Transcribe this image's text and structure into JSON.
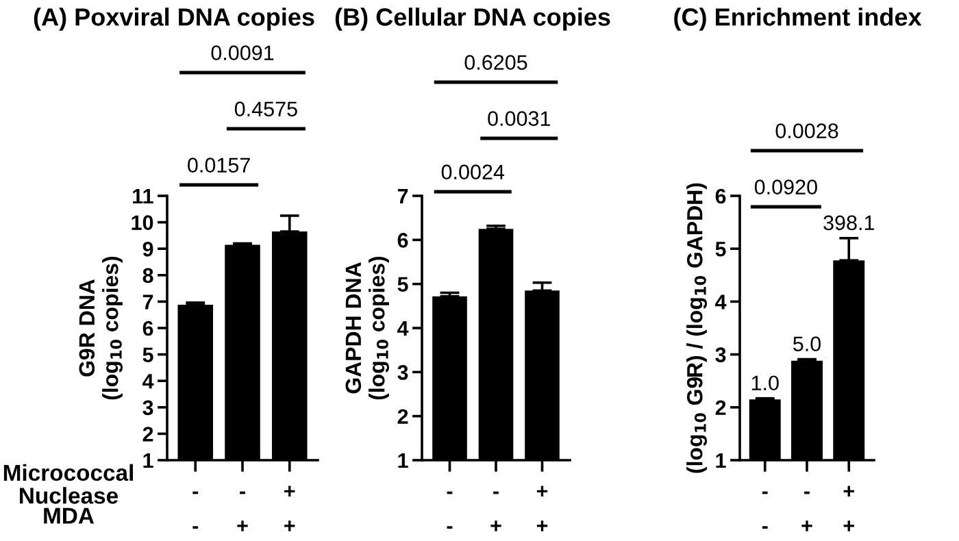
{
  "chart_data": [
    {
      "type": "bar",
      "title": "(A) Poxviral DNA copies",
      "ylabel": "G9R DNA\n(log$_{10}$ copies)",
      "categories": [
        "-\n-",
        "-\n+",
        "+\n+"
      ],
      "values": [
        6.88,
        9.15,
        9.65
      ],
      "errors": [
        0.08,
        0.05,
        0.6
      ],
      "color": "#000000",
      "ylim": [
        1,
        11
      ],
      "yticks": [
        1,
        2,
        3,
        4,
        5,
        6,
        7,
        8,
        9,
        10,
        11
      ],
      "grid": false,
      "annotations": [
        "0.0157",
        "0.4575",
        "0.0091",
        "Micrococcal\nNuclease",
        "MDA"
      ]
    },
    {
      "type": "bar",
      "title": "(B) Cellular DNA copies",
      "ylabel": "GAPDH DNA\n(log$_{10}$ copies)",
      "categories": [
        "-\n-",
        "-\n+",
        "+\n+"
      ],
      "values": [
        4.72,
        6.25,
        4.85
      ],
      "errors": [
        0.08,
        0.07,
        0.18
      ],
      "color": "#000000",
      "ylim": [
        1,
        7
      ],
      "yticks": [
        1,
        2,
        3,
        4,
        5,
        6,
        7
      ],
      "grid": false,
      "annotations": [
        "0.0024",
        "0.0031",
        "0.6205"
      ]
    },
    {
      "type": "bar",
      "title": "(C) Enrichment index",
      "ylabel": "(log$_{10}$ G9R) / (log$_{10}$ GAPDH)",
      "categories": [
        "-\n-",
        "-\n+",
        "+\n+"
      ],
      "values": [
        2.15,
        2.88,
        4.78
      ],
      "errors": [
        0.02,
        0.03,
        0.42
      ],
      "color": "#000000",
      "ylim": [
        1,
        6
      ],
      "yticks": [
        1,
        2,
        3,
        4,
        5,
        6
      ],
      "grid": false,
      "annotations": [
        "0.0920",
        "0.0028",
        {
          "text": "1.0",
          "x": "-\n-",
          "y": 2.17
        },
        {
          "text": "5.0",
          "x": "-\n+",
          "y": 2.91
        },
        {
          "text": "398.1",
          "x": "+\n+",
          "y": 5.2
        }
      ]
    }
  ]
}
